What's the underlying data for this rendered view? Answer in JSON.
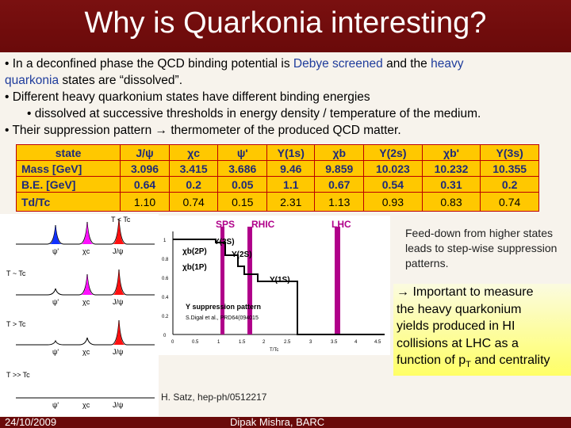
{
  "title": "Why is Quarkonia interesting?",
  "bullets": {
    "b1_pre": "• In a deconfined phase the QCD binding potential is ",
    "b1_debye": "Debye screened",
    "b1_mid": " and the ",
    "b1_heavy": "heavy",
    "b1_line2_blue": "quarkonia",
    "b1_line2_rest": " states are “dissolved”.",
    "b2": "• Different heavy quarkonium states have different binding energies",
    "b2_sub": "• dissolved at successive thresholds in energy density / temperature of the medium.",
    "b3": "•  Their suppression pattern → thermometer of the produced QCD matter."
  },
  "table": {
    "headers": [
      "state",
      "J/ψ",
      "χc",
      "ψ'",
      "Υ(1s)",
      "χb",
      "Υ(2s)",
      "χb'",
      "Υ(3s)"
    ],
    "rows": [
      [
        "Mass [GeV]",
        "3.096",
        "3.415",
        "3.686",
        "9.46",
        "9.859",
        "10.023",
        "10.232",
        "10.355"
      ],
      [
        "B.E. [GeV]",
        "0.64",
        "0.2",
        "0.05",
        "1.1",
        "0.67",
        "0.54",
        "0.31",
        "0.2"
      ],
      [
        "Td/Tc",
        "1.10",
        "0.74",
        "0.15",
        "2.31",
        "1.13",
        "0.93",
        "0.83",
        "0.74"
      ]
    ]
  },
  "left_panel": {
    "labels": [
      "T < Tc",
      "T ~ Tc",
      "T > Tc",
      "T >> Tc"
    ],
    "peak_labels": [
      "ψ'",
      "χc",
      "J/ψ"
    ],
    "peak_colors": [
      "#1030ff",
      "#ff10ff",
      "#ff1010"
    ]
  },
  "plot": {
    "regions": [
      "SPS",
      "RHIC",
      "LHC"
    ],
    "state_labels": [
      "Υ(3S)",
      "χb(2P)",
      "Υ(2S)",
      "χb(1P)",
      "Υ(1S)"
    ],
    "legend_title": "Υ suppression pattern",
    "legend_ref": "S.Digal et al., PRD64(094015",
    "yticks": [
      "1",
      "0.8",
      "0.6",
      "0.4",
      "0.2",
      "0"
    ],
    "xticks": [
      "0",
      "0.5",
      "1",
      "1.5",
      "2",
      "2.5",
      "3",
      "3.5",
      "4",
      "4.5"
    ],
    "xlabel": "T/Tc"
  },
  "feed_text": "Feed-down from higher states leads to step-wise suppression patterns.",
  "important": {
    "line1": "→ Important to measure",
    "line2": "the heavy quarkonium",
    "line3": "yields produced in HI",
    "line4": "collisions at LHC as a",
    "line5_pre": "function of p",
    "line5_sub": "T",
    "line5_post": " and centrality"
  },
  "citation": "H. Satz, hep-ph/0512217",
  "footer": {
    "date": "24/10/2009",
    "author": "Dipak Mishra, BARC"
  }
}
